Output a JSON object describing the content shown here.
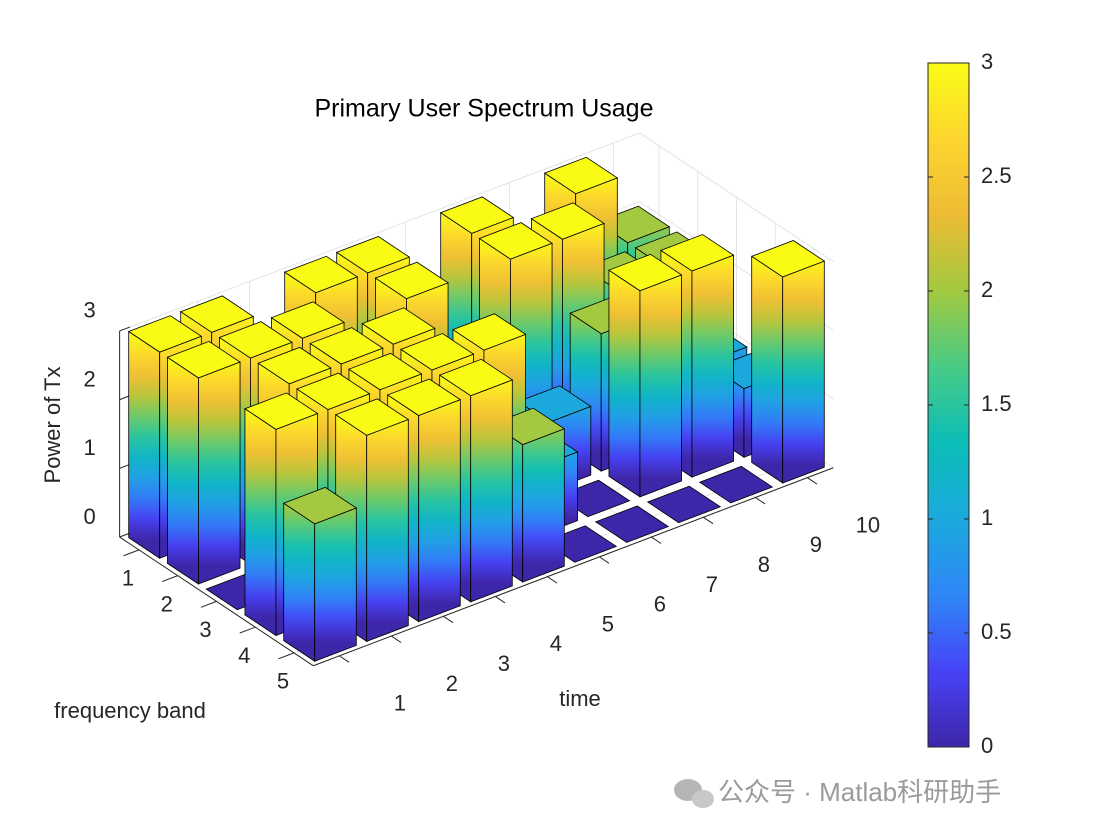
{
  "chart_data": {
    "type": "bar3",
    "title": "Primary User Spectrum Usage",
    "xlabel": "time",
    "ylabel": "frequency band",
    "zlabel": "Power of Tx",
    "x": [
      1,
      2,
      3,
      4,
      5,
      6,
      7,
      8,
      9,
      10
    ],
    "y": [
      1,
      2,
      3,
      4,
      5
    ],
    "values": [
      [
        3,
        3,
        2,
        3,
        3,
        1,
        3,
        2,
        3,
        2
      ],
      [
        3,
        3,
        3,
        2,
        3,
        1,
        3,
        3,
        2,
        2
      ],
      [
        0,
        3,
        3,
        3,
        2,
        1,
        1,
        2,
        1,
        1
      ],
      [
        3,
        3,
        3,
        3,
        3,
        1,
        0,
        3,
        3,
        1
      ],
      [
        2,
        3,
        3,
        3,
        2,
        0,
        0,
        0,
        0,
        3
      ]
    ],
    "xlim": [
      0.5,
      10.5
    ],
    "ylim": [
      0.5,
      5.5
    ],
    "zlim": [
      0,
      3
    ],
    "xticks": [
      1,
      2,
      3,
      4,
      5,
      6,
      7,
      8,
      9,
      10
    ],
    "yticks": [
      1,
      2,
      3,
      4,
      5
    ],
    "zticks": [
      0,
      1,
      2,
      3
    ],
    "grid": true,
    "edge_color": "#000000",
    "colormap": [
      "#3e26a8",
      "#4743f8",
      "#2e87f7",
      "#1ba9dd",
      "#0bbdb8",
      "#48cb86",
      "#a2c940",
      "#edbb34",
      "#fcd52e",
      "#f9fb15"
    ],
    "clim": [
      0,
      3
    ],
    "colorbar_ticks": [
      0,
      0.5,
      1,
      1.5,
      2,
      2.5,
      3
    ]
  },
  "watermark": "公众号 · Matlab科研助手"
}
